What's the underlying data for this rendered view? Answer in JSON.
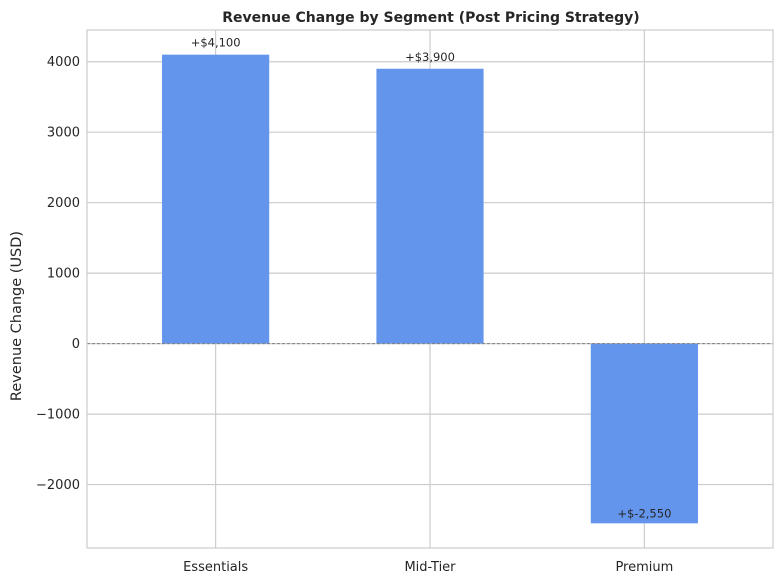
{
  "chart_data": {
    "type": "bar",
    "title": "Revenue Change by Segment (Post Pricing Strategy)",
    "xlabel": "",
    "ylabel": "Revenue Change (USD)",
    "categories": [
      "Essentials",
      "Mid-Tier",
      "Premium"
    ],
    "values": [
      4100,
      3900,
      -2550
    ],
    "data_labels": [
      "+$4,100",
      "+$3,900",
      "+$-2,550"
    ],
    "ylim": [
      -2900,
      4450
    ],
    "yticks": [
      -2000,
      -1000,
      0,
      1000,
      2000,
      3000,
      4000
    ],
    "ytick_labels": [
      "−2000",
      "−1000",
      "0",
      "1000",
      "2000",
      "3000",
      "4000"
    ],
    "grid": true,
    "zero_line": true,
    "bar_color": "#6495ED",
    "grid_color": "#cccccc",
    "zero_line_color": "#808080"
  }
}
